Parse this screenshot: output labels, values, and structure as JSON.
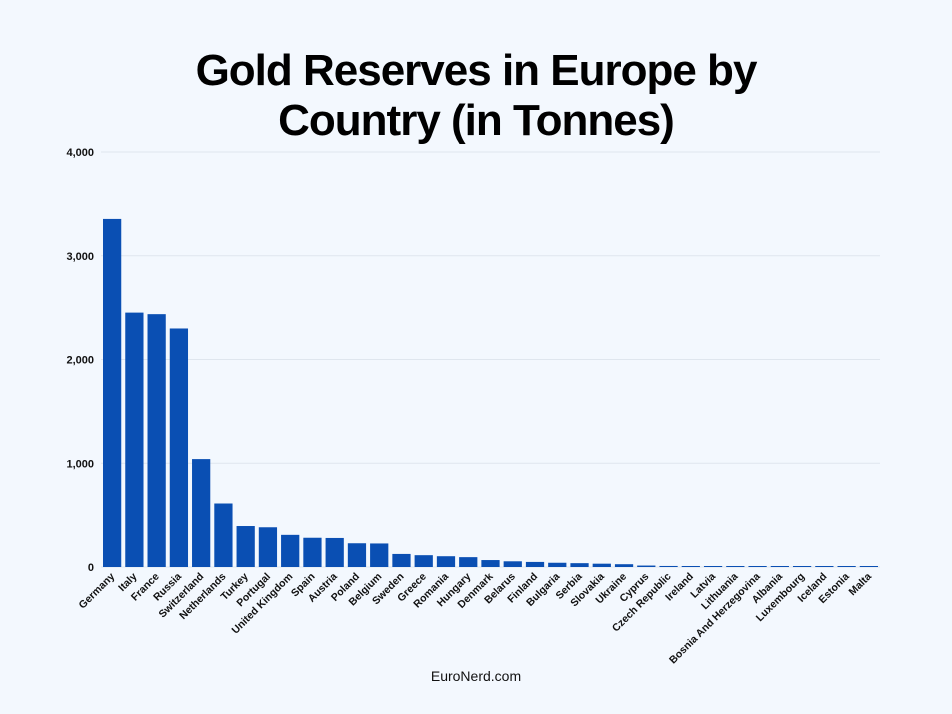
{
  "chart_data": {
    "type": "bar",
    "title_line1": "Gold Reserves in Europe by",
    "title_line2": "Country (in Tonnes)",
    "xlabel": "",
    "ylabel": "",
    "ylim": [
      0,
      4000
    ],
    "yticks": [
      {
        "value": 0,
        "label": "0"
      },
      {
        "value": 1000,
        "label": "1,000"
      },
      {
        "value": 2000,
        "label": "2,000"
      },
      {
        "value": 3000,
        "label": "3,000"
      },
      {
        "value": 4000,
        "label": "4,000"
      }
    ],
    "grid": true,
    "bar_color": "#0a4fb3",
    "categories": [
      "Germany",
      "Italy",
      "France",
      "Russia",
      "Switzerland",
      "Netherlands",
      "Turkey",
      "Portugal",
      "United Kingdom",
      "Spain",
      "Austria",
      "Poland",
      "Belgium",
      "Sweden",
      "Greece",
      "Romania",
      "Hungary",
      "Denmark",
      "Belarus",
      "Finland",
      "Bulgaria",
      "Serbia",
      "Slovakia",
      "Ukraine",
      "Cyprus",
      "Czech Republic",
      "Ireland",
      "Latvia",
      "Lithuania",
      "Bosnia And Herzegovina",
      "Albania",
      "Luxembourg",
      "Iceland",
      "Estonia",
      "Malta"
    ],
    "values": [
      3355,
      2452,
      2437,
      2299,
      1040,
      612,
      395,
      383,
      310,
      282,
      280,
      229,
      227,
      126,
      114,
      104,
      95,
      67,
      55,
      49,
      41,
      37,
      32,
      27,
      14,
      10,
      6,
      7,
      6,
      4,
      2,
      2,
      2,
      0.3,
      0.2
    ]
  },
  "footer": "EuroNerd.com"
}
